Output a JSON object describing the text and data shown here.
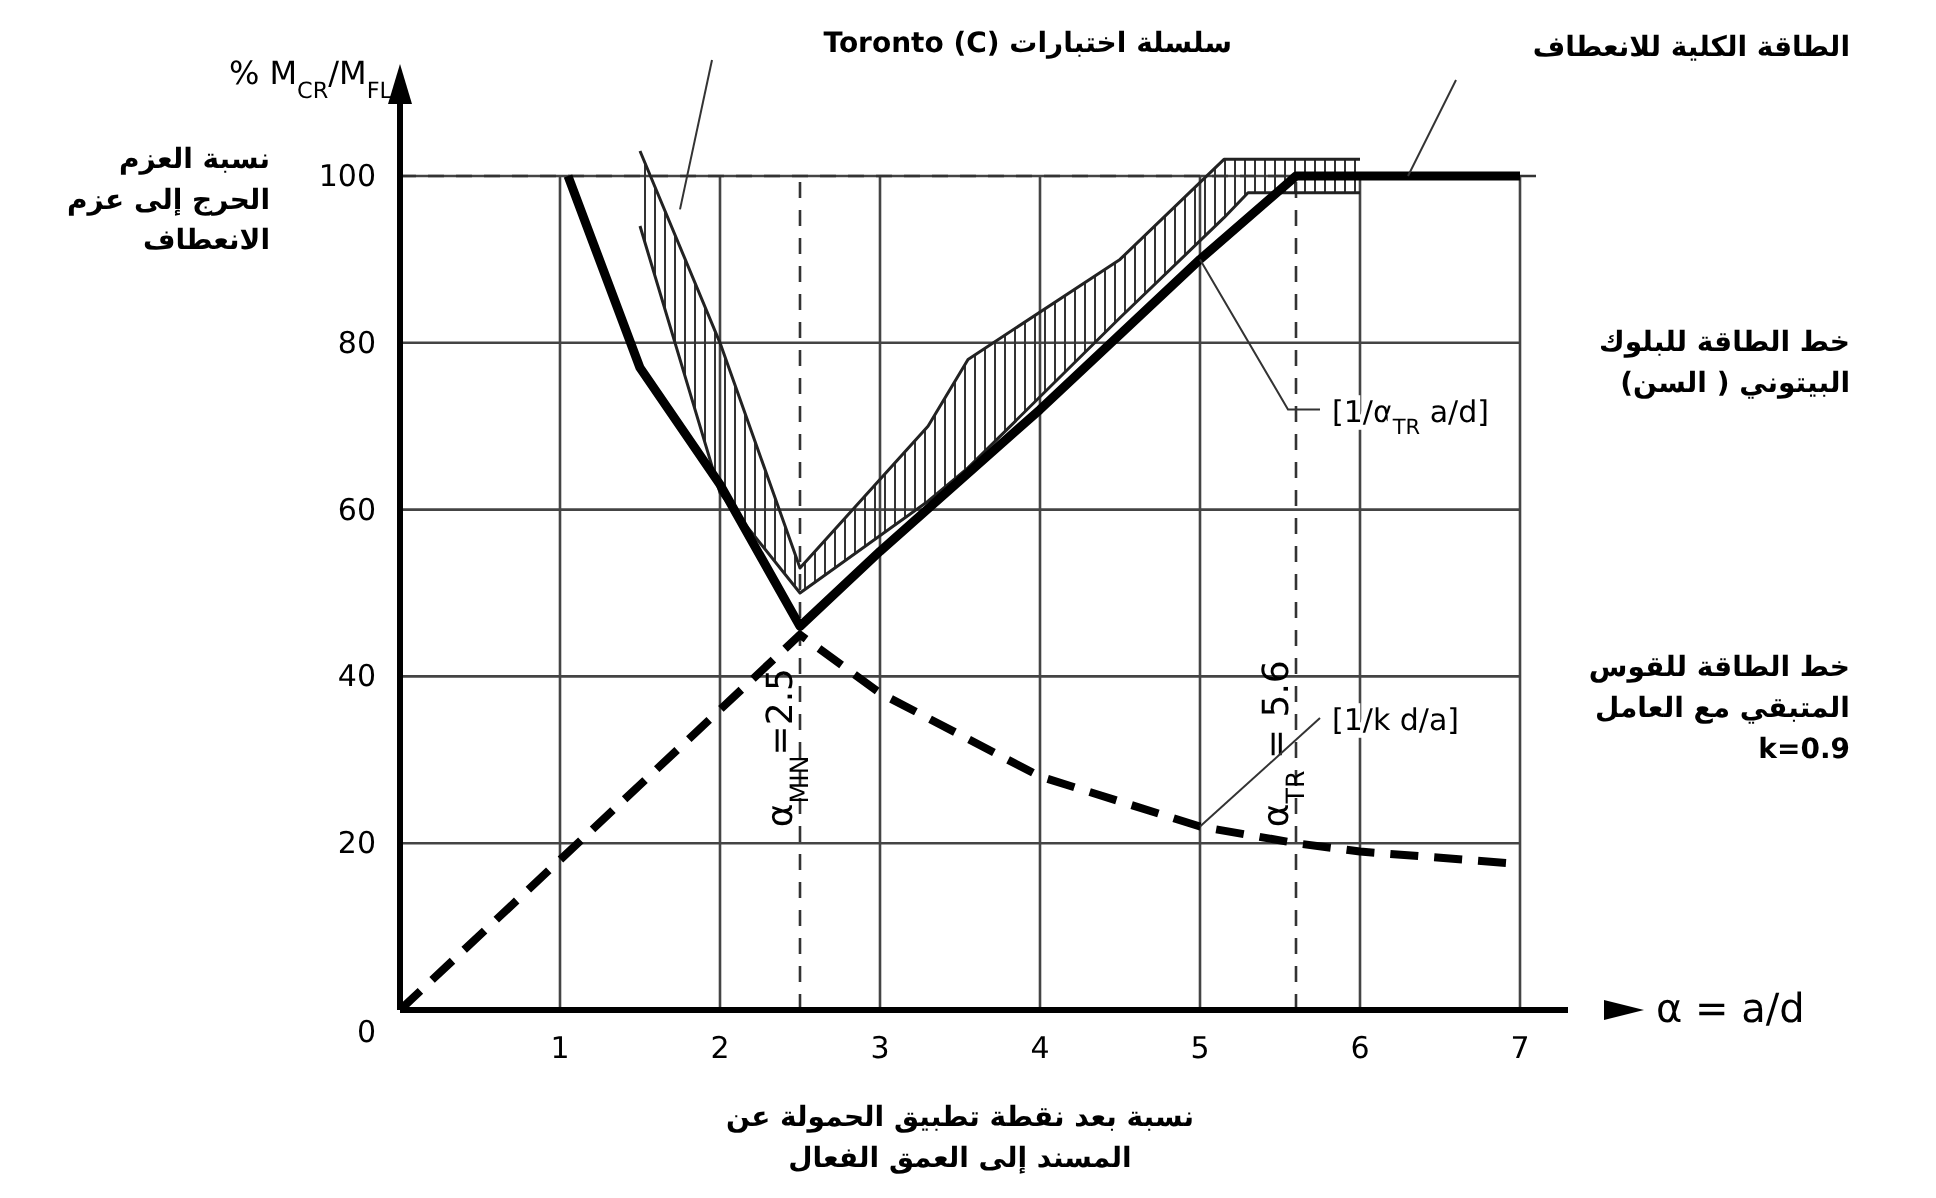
{
  "chart_data": {
    "type": "line",
    "ylabel": "نسبة العزم الحرج إلى عزم الانعطاف",
    "xlabel": "نسبة بعد نقطة تطبيق الحمولة عن المسند إلى العمق الفعال",
    "xlim": [
      0,
      7.3
    ],
    "ylim": [
      0,
      112
    ],
    "xticks": [
      1,
      2,
      3,
      4,
      5,
      6,
      7
    ],
    "yticks": [
      0,
      20,
      40,
      60,
      80,
      100
    ],
    "grid": true,
    "series": [
      {
        "color": "#222222",
        "line_style": "solid",
        "x": [
          1.5,
          2,
          2.5,
          3.3,
          3.55,
          4.5,
          5.15,
          5.3,
          6
        ],
        "values": [
          103,
          80,
          53,
          70,
          78,
          90,
          102,
          102,
          102
        ]
      },
      {
        "color": "#222222",
        "line_style": "solid",
        "x": [
          1.5,
          2,
          2.5,
          3.3,
          3.55,
          4.5,
          5.15,
          5.3,
          6
        ],
        "values": [
          94,
          62,
          50,
          61,
          65,
          83,
          95,
          98,
          98
        ]
      },
      {
        "color": "#000000",
        "line_style": "solid",
        "x": [
          1.05,
          1.5,
          2,
          2.5,
          3,
          4,
          5,
          5.6,
          6,
          7
        ],
        "values": [
          100,
          77,
          63,
          46,
          55,
          72,
          90,
          100,
          100,
          100
        ]
      },
      {
        "color": "#000000",
        "line_style": "dashed",
        "x": [
          0,
          1,
          2,
          2.5,
          3,
          4,
          5,
          5.6,
          6,
          7
        ],
        "values": [
          0,
          18,
          36,
          45,
          38,
          28,
          22,
          20,
          19,
          17.5
        ]
      }
    ],
    "ref_lines": [
      {
        "axis": "y",
        "value": 100,
        "label": null,
        "line_style": "dashed"
      },
      {
        "axis": "x",
        "value": 2.5,
        "label": "α$_{MIN}$=2.5",
        "line_style": "dashed"
      },
      {
        "axis": "x",
        "value": 5.6,
        "label": "α$_{TR}$ = 5.6",
        "line_style": "dashed"
      }
    ],
    "annotations": [
      "% M$_{CR}$/M$_{FL}$",
      "α = a/d",
      "سلسلة اختبارات Toronto (C)",
      "الطاقة الكلية للانعطاف",
      {
        "text": "[1/α$_{TR}$ a/d]",
        "x": 5,
        "y": 90
      },
      "خط الطاقة للبلوك البيتوني ( السن)",
      {
        "text": "[1/k d/a]",
        "x": 5,
        "y": 22
      },
      "خط الطاقة للقوس المتبقي مع العامل k=0.9"
    ]
  }
}
